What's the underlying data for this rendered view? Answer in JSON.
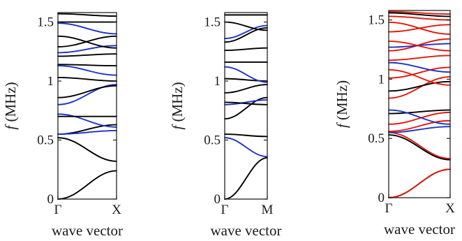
{
  "chart_data": [
    {
      "type": "line",
      "xlabel": "wave vector",
      "ylabel": "f (MHz)",
      "ylim": [
        0,
        1.58
      ],
      "yticks": [
        "0",
        "0.5",
        "1",
        "1.5"
      ],
      "x_ticks": [
        "Γ",
        "X"
      ],
      "series": [
        {
          "color": "#000000",
          "y": [
            0,
            0.24
          ]
        },
        {
          "color": "#000000",
          "y": [
            0.52,
            0.32
          ]
        },
        {
          "color": "#000000",
          "y": [
            0.55,
            0.63
          ]
        },
        {
          "color": "#1c33c6",
          "y": [
            0.55,
            0.58
          ]
        },
        {
          "color": "#1c33c6",
          "y": [
            0.72,
            0.61
          ]
        },
        {
          "color": "#000000",
          "y": [
            0.7,
            0.7
          ]
        },
        {
          "color": "#1c33c6",
          "y": [
            0.8,
            0.97
          ]
        },
        {
          "color": "#000000",
          "y": [
            0.86,
            0.96
          ]
        },
        {
          "color": "#000000",
          "y": [
            1.03,
            1.0
          ]
        },
        {
          "color": "#1c33c6",
          "y": [
            1.13,
            1.05
          ]
        },
        {
          "color": "#000000",
          "y": [
            1.14,
            1.13
          ]
        },
        {
          "color": "#000000",
          "y": [
            1.21,
            1.23
          ]
        },
        {
          "color": "#1c33c6",
          "y": [
            1.24,
            1.3
          ]
        },
        {
          "color": "#000000",
          "y": [
            1.29,
            1.38
          ]
        },
        {
          "color": "#000000",
          "y": [
            1.38,
            1.28
          ]
        },
        {
          "color": "#000000",
          "y": [
            1.5,
            1.5
          ]
        },
        {
          "color": "#000000",
          "y": [
            1.57,
            1.55
          ]
        },
        {
          "color": "#1c33c6",
          "y": [
            1.49,
            1.4
          ]
        }
      ]
    },
    {
      "type": "line",
      "xlabel": "wave vector",
      "ylabel": "f (MHz)",
      "ylim": [
        0,
        1.58
      ],
      "yticks": [
        "0",
        "0.5",
        "1",
        "1.5"
      ],
      "x_ticks": [
        "Γ",
        "M"
      ],
      "series": [
        {
          "color": "#000000",
          "y": [
            0,
            0.35
          ]
        },
        {
          "color": "#1c33c6",
          "y": [
            0.52,
            0.36
          ]
        },
        {
          "color": "#000000",
          "y": [
            0.55,
            0.53
          ]
        },
        {
          "color": "#000000",
          "y": [
            0.68,
            0.86
          ]
        },
        {
          "color": "#1c33c6",
          "y": [
            0.8,
            0.84
          ]
        },
        {
          "color": "#000000",
          "y": [
            0.82,
            0.8
          ]
        },
        {
          "color": "#000000",
          "y": [
            0.9,
            0.97
          ]
        },
        {
          "color": "#000000",
          "y": [
            1.02,
            1.0
          ]
        },
        {
          "color": "#1c33c6",
          "y": [
            1.12,
            0.99
          ]
        },
        {
          "color": "#000000",
          "y": [
            1.16,
            1.16
          ]
        },
        {
          "color": "#000000",
          "y": [
            1.26,
            1.28
          ]
        },
        {
          "color": "#000000",
          "y": [
            1.33,
            1.45
          ]
        },
        {
          "color": "#1c33c6",
          "y": [
            1.36,
            1.47
          ]
        },
        {
          "color": "#000000",
          "y": [
            1.5,
            1.43
          ]
        },
        {
          "color": "#000000",
          "y": [
            1.56,
            1.56
          ]
        }
      ]
    },
    {
      "type": "line",
      "xlabel": "wave vector",
      "ylabel": "f (MHz)",
      "ylim": [
        0,
        1.58
      ],
      "yticks": [
        "0",
        "0.5",
        "1",
        "1.5"
      ],
      "x_ticks": [
        "Γ",
        "X"
      ],
      "series": [
        {
          "color": "#000000",
          "y": [
            0,
            0.24
          ]
        },
        {
          "color": "#e3170a",
          "y": [
            0,
            0.24
          ]
        },
        {
          "color": "#000000",
          "y": [
            0.53,
            0.32
          ]
        },
        {
          "color": "#e3170a",
          "y": [
            0.55,
            0.33
          ]
        },
        {
          "color": "#1c33c6",
          "y": [
            0.55,
            0.6
          ]
        },
        {
          "color": "#e3170a",
          "y": [
            0.56,
            0.65
          ]
        },
        {
          "color": "#e3170a",
          "y": [
            0.62,
            0.72
          ]
        },
        {
          "color": "#000000",
          "y": [
            0.71,
            0.74
          ]
        },
        {
          "color": "#1c33c6",
          "y": [
            0.74,
            0.62
          ]
        },
        {
          "color": "#e3170a",
          "y": [
            0.84,
            1.02
          ]
        },
        {
          "color": "#000000",
          "y": [
            0.9,
            0.98
          ]
        },
        {
          "color": "#e3170a",
          "y": [
            1.01,
            1.1
          ]
        },
        {
          "color": "#e3170a",
          "y": [
            1.08,
            0.95
          ]
        },
        {
          "color": "#1c33c6",
          "y": [
            1.14,
            1.06
          ]
        },
        {
          "color": "#e3170a",
          "y": [
            1.16,
            1.2
          ]
        },
        {
          "color": "#e3170a",
          "y": [
            1.24,
            1.34
          ]
        },
        {
          "color": "#1c33c6",
          "y": [
            1.27,
            1.3
          ]
        },
        {
          "color": "#e3170a",
          "y": [
            1.32,
            1.24
          ]
        },
        {
          "color": "#e3170a",
          "y": [
            1.4,
            1.46
          ]
        },
        {
          "color": "#e3170a",
          "y": [
            1.48,
            1.38
          ]
        },
        {
          "color": "#e3170a",
          "y": [
            1.53,
            1.5
          ]
        },
        {
          "color": "#e3170a",
          "y": [
            1.57,
            1.55
          ]
        },
        {
          "color": "#000000",
          "y": [
            1.56,
            1.53
          ]
        }
      ]
    }
  ]
}
